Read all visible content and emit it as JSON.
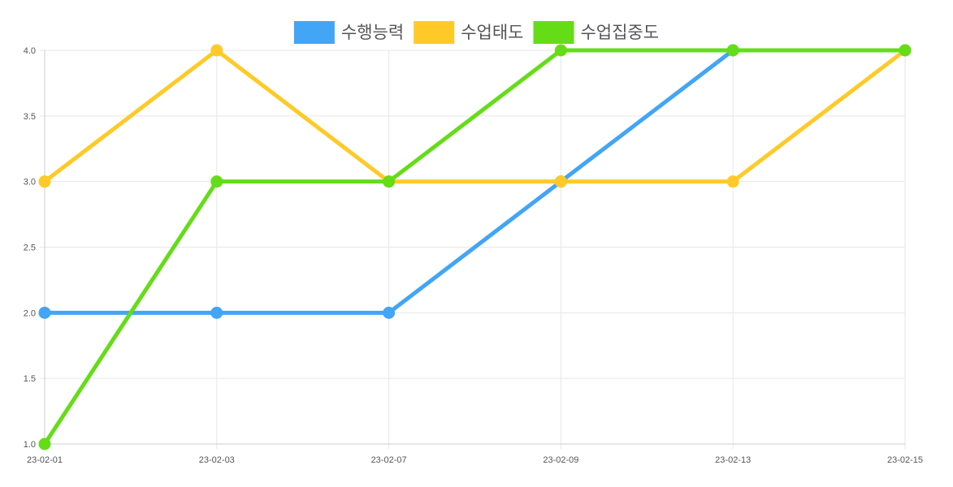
{
  "chart_data": {
    "type": "line",
    "categories": [
      "23-02-01",
      "23-02-03",
      "23-02-07",
      "23-02-09",
      "23-02-13",
      "23-02-15"
    ],
    "series": [
      {
        "name": "수행능력",
        "color": "#42a5f5",
        "values": [
          2,
          2,
          2,
          3,
          4,
          4
        ]
      },
      {
        "name": "수업태도",
        "color": "#ffca28",
        "values": [
          3,
          4,
          3,
          3,
          3,
          4
        ]
      },
      {
        "name": "수업집중도",
        "color": "#64dd17",
        "values": [
          1,
          3,
          3,
          4,
          4,
          4
        ]
      }
    ],
    "title": "",
    "xlabel": "",
    "ylabel": "",
    "ylim": [
      1.0,
      4.0
    ],
    "yticks": [
      "1.0",
      "1.5",
      "2.0",
      "2.5",
      "3.0",
      "3.5",
      "4.0"
    ],
    "grid": true,
    "legend_position": "top"
  }
}
